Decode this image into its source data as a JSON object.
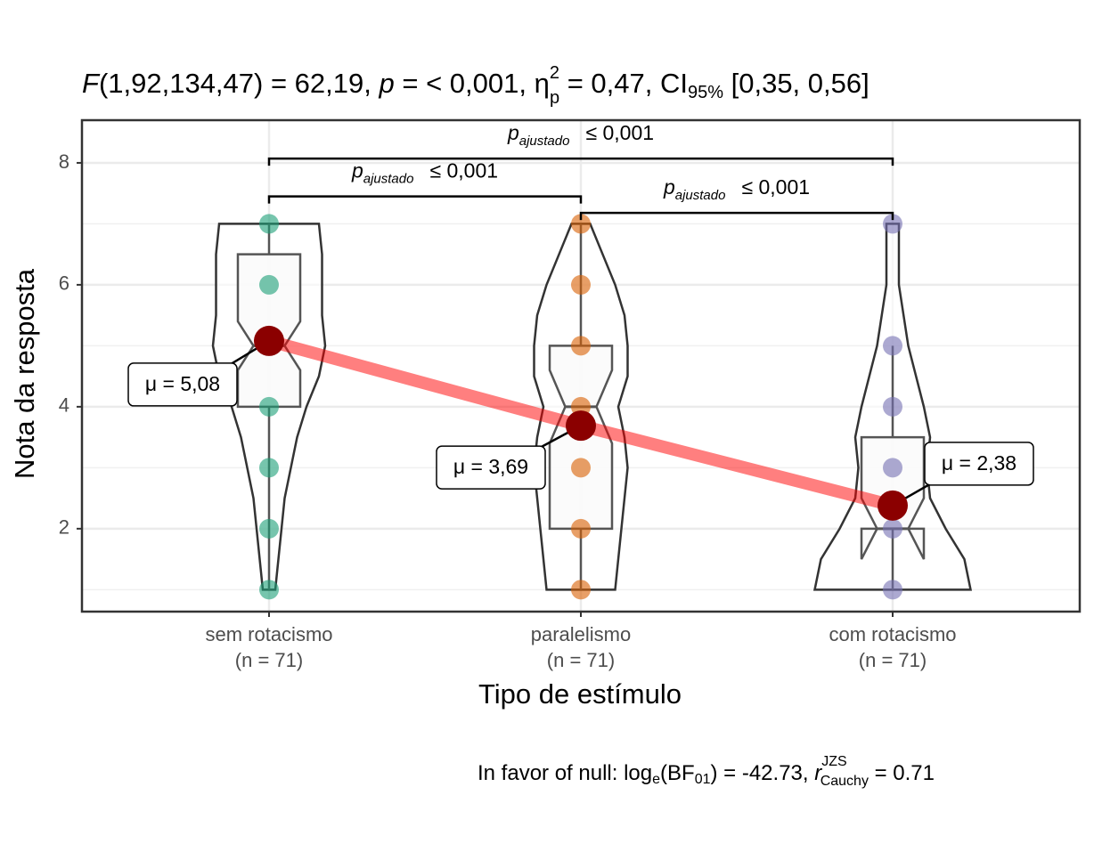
{
  "chart_data": {
    "type": "violin",
    "title": {
      "stat": "F",
      "df": "(1,92,134,47) = 62,19, ",
      "p": "p",
      "p_val": " = < 0,001, η",
      "eta_sup": "2",
      "eta_sub": "p",
      "eta_val": " = 0,47, CI",
      "ci_sub": "95%",
      "ci_val": " [0,35, 0,56]"
    },
    "caption": {
      "pre": "In favor of null: log",
      "log_sub": "e",
      "bf": "(BF",
      "bf_sub": "01",
      "bf_val": ") = -42.73, ",
      "r": "r",
      "r_sup": "JZS",
      "r_sub": "Cauchy",
      "r_val": " = 0.71"
    },
    "x_label": "Tipo de estímulo",
    "y_label": "Nota da resposta",
    "categories": [
      "sem rotacismo",
      "paralelismo",
      "com rotacismo"
    ],
    "n_labels": [
      "(n = 71)",
      "(n = 71)",
      "(n = 71)"
    ],
    "ylim": [
      0.64,
      8.7
    ],
    "yticks": [
      2,
      4,
      6,
      8
    ],
    "minor_yticks": [
      1,
      3,
      5,
      7
    ],
    "grid": true,
    "mean_line_color": "#ff0000",
    "mean_color": "#8b0000",
    "groups": [
      {
        "color": "#1b9e77",
        "points": [
          1,
          2,
          3,
          4,
          5,
          6,
          7
        ],
        "box": {
          "min": 1,
          "q1": 4,
          "median": 5,
          "q3": 6.5,
          "max": 7,
          "notch_low": 4.6,
          "notch_high": 5.4
        },
        "mean": 5.08,
        "mean_label": "μ = 5,08",
        "violin": {
          "y": [
            1,
            1.5,
            2,
            2.5,
            3,
            3.5,
            4,
            4.5,
            5,
            5.5,
            6,
            6.5,
            7
          ],
          "width": [
            0.02,
            0.03,
            0.04,
            0.05,
            0.07,
            0.09,
            0.12,
            0.16,
            0.18,
            0.17,
            0.17,
            0.17,
            0.16
          ]
        }
      },
      {
        "color": "#d95f02",
        "points": [
          1,
          2,
          3,
          4,
          5,
          6,
          7
        ],
        "box": {
          "min": 1,
          "q1": 2,
          "median": 4,
          "q3": 5,
          "max": 7,
          "notch_low": 3.4,
          "notch_high": 4.6
        },
        "mean": 3.69,
        "mean_label": "μ = 3,69",
        "violin": {
          "y": [
            1,
            1.5,
            2,
            2.5,
            3,
            3.5,
            4,
            4.5,
            5,
            5.5,
            6,
            6.5,
            7
          ],
          "width": [
            0.11,
            0.12,
            0.13,
            0.14,
            0.15,
            0.14,
            0.12,
            0.15,
            0.15,
            0.14,
            0.11,
            0.07,
            0.03
          ]
        }
      },
      {
        "color": "#7570b3",
        "points": [
          1,
          2,
          3,
          4,
          5,
          7
        ],
        "box": {
          "min": 1,
          "q1": 2,
          "median": 2,
          "q3": 3.5,
          "max": 5,
          "notch_low": 1.5,
          "notch_high": 2.5
        },
        "mean": 2.38,
        "mean_label": "μ = 2,38",
        "violin": {
          "y": [
            1,
            1.5,
            2,
            2.5,
            3,
            3.5,
            4,
            5,
            6,
            7
          ],
          "width": [
            0.25,
            0.23,
            0.17,
            0.12,
            0.11,
            0.12,
            0.1,
            0.05,
            0.02,
            0.02
          ]
        }
      }
    ],
    "comparisons": [
      {
        "from": 0,
        "to": 1,
        "y": 7.45,
        "p": "p",
        "sub": "ajustado",
        "val": "≤ 0,001"
      },
      {
        "from": 1,
        "to": 2,
        "y": 7.18,
        "p": "p",
        "sub": "ajustado",
        "val": "≤ 0,001"
      },
      {
        "from": 0,
        "to": 2,
        "y": 8.07,
        "p": "p",
        "sub": "ajustado",
        "val": "≤ 0,001"
      }
    ]
  }
}
